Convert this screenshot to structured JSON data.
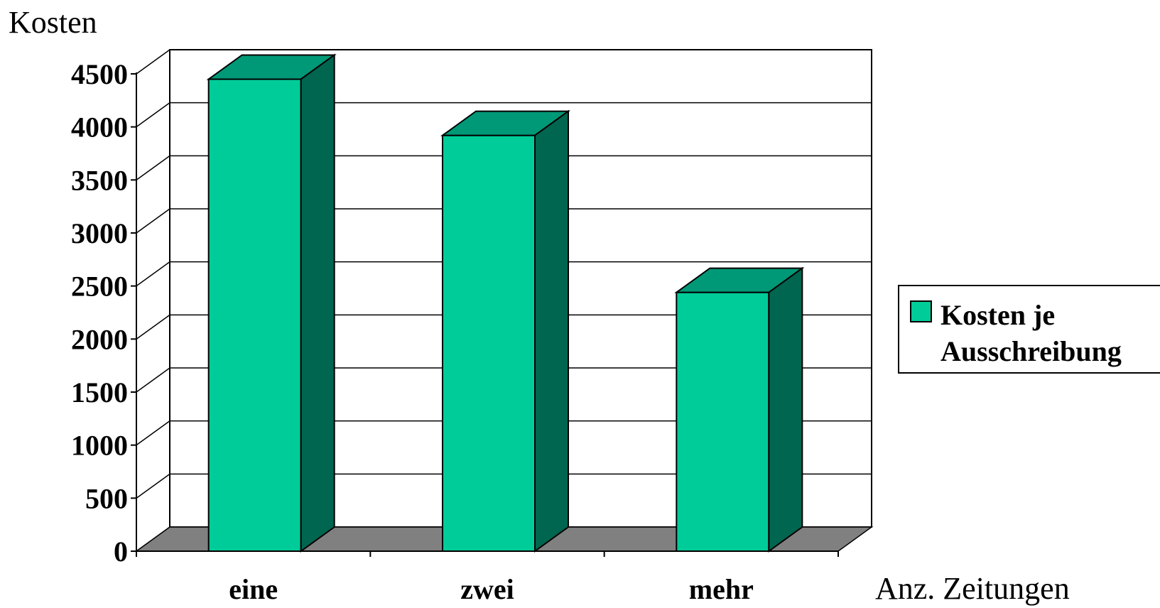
{
  "chart_data": {
    "type": "bar",
    "categories": [
      "eine",
      "zwei",
      "mehr"
    ],
    "series": [
      {
        "name": "Kosten je Ausschreibung",
        "values": [
          4450,
          3920,
          2440
        ]
      }
    ],
    "title": "",
    "ylabel": "Kosten",
    "xlabel": "Anz. Zeitungen",
    "ylim": [
      0,
      4500
    ],
    "yticks": [
      0,
      500,
      1000,
      1500,
      2000,
      2500,
      3000,
      3500,
      4000,
      4500
    ],
    "grid": true,
    "legend": {
      "position": "right",
      "lines": [
        "Kosten je",
        "Ausschreibung"
      ]
    },
    "three_d": true
  },
  "colors": {
    "bar_front": "#00cc99",
    "bar_top": "#009977",
    "bar_side": "#006650",
    "floor": "#808080",
    "grid": "#000000",
    "background": "#ffffff"
  }
}
